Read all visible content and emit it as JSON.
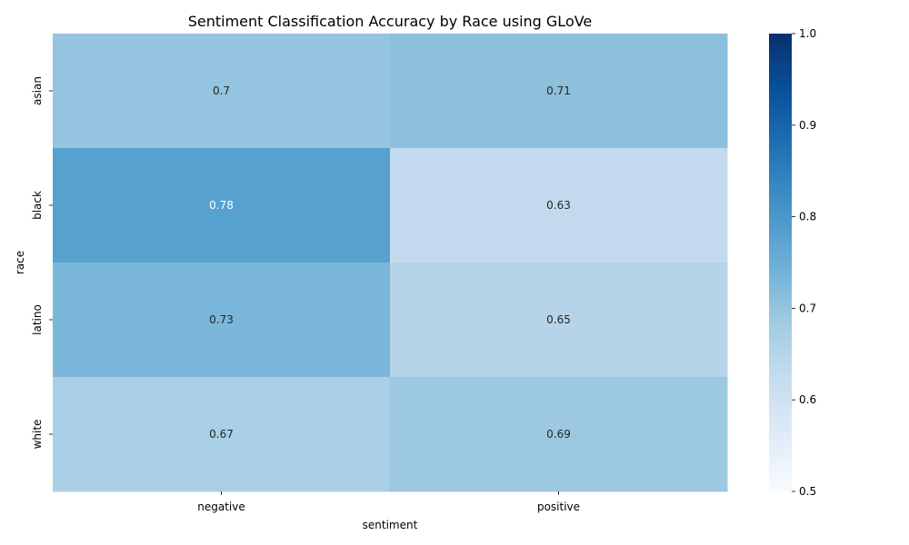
{
  "chart_data": {
    "type": "heatmap",
    "title": "Sentiment Classification Accuracy by Race using GLoVe",
    "xlabel": "sentiment",
    "ylabel": "race",
    "x_categories": [
      "negative",
      "positive"
    ],
    "y_categories": [
      "asian",
      "black",
      "latino",
      "white"
    ],
    "values": [
      [
        0.7,
        0.71
      ],
      [
        0.78,
        0.63
      ],
      [
        0.73,
        0.65
      ],
      [
        0.67,
        0.69
      ]
    ],
    "value_labels": [
      [
        "0.7",
        "0.71"
      ],
      [
        "0.78",
        "0.63"
      ],
      [
        "0.73",
        "0.65"
      ],
      [
        "0.67",
        "0.69"
      ]
    ],
    "colorbar": {
      "range": [
        0.5,
        1.0
      ],
      "ticks": [
        "0.5",
        "0.6",
        "0.7",
        "0.8",
        "0.9",
        "1.0"
      ],
      "colormap": "Blues"
    }
  }
}
